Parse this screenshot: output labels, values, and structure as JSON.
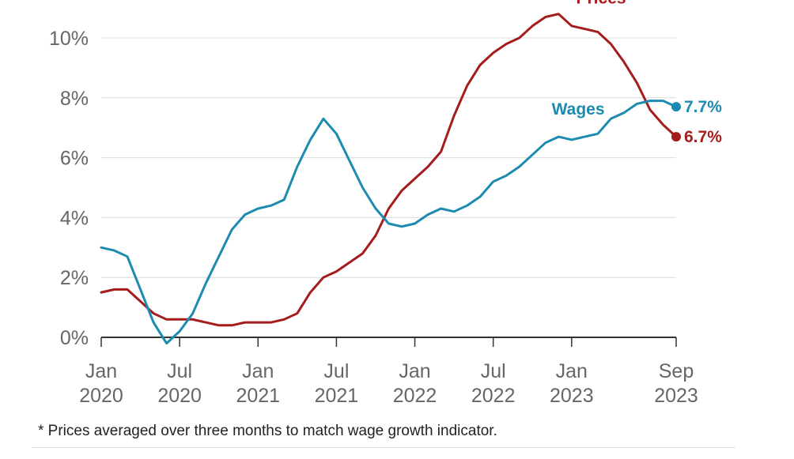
{
  "chart_data": {
    "type": "line",
    "title": "",
    "xlabel": "",
    "ylabel": "",
    "ylim": [
      0,
      10
    ],
    "yticks": [
      0,
      2,
      4,
      6,
      8,
      10
    ],
    "ytick_labels": [
      "0%",
      "2%",
      "4%",
      "6%",
      "8%",
      "10%"
    ],
    "grid": true,
    "xticks": [
      {
        "month": 0,
        "line1": "Jan",
        "line2": "2020"
      },
      {
        "month": 6,
        "line1": "Jul",
        "line2": "2020"
      },
      {
        "month": 12,
        "line1": "Jan",
        "line2": "2021"
      },
      {
        "month": 18,
        "line1": "Jul",
        "line2": "2021"
      },
      {
        "month": 24,
        "line1": "Jan",
        "line2": "2022"
      },
      {
        "month": 30,
        "line1": "Jul",
        "line2": "2022"
      },
      {
        "month": 36,
        "line1": "Jan",
        "line2": "2023"
      },
      {
        "month": 44,
        "line1": "Sep",
        "line2": "2023"
      }
    ],
    "x": [
      "Jan 2020",
      "Feb 2020",
      "Mar 2020",
      "Apr 2020",
      "May 2020",
      "Jun 2020",
      "Jul 2020",
      "Aug 2020",
      "Sep 2020",
      "Oct 2020",
      "Nov 2020",
      "Dec 2020",
      "Jan 2021",
      "Feb 2021",
      "Mar 2021",
      "Apr 2021",
      "May 2021",
      "Jun 2021",
      "Jul 2021",
      "Aug 2021",
      "Sep 2021",
      "Oct 2021",
      "Nov 2021",
      "Dec 2021",
      "Jan 2022",
      "Feb 2022",
      "Mar 2022",
      "Apr 2022",
      "May 2022",
      "Jun 2022",
      "Jul 2022",
      "Aug 2022",
      "Sep 2022",
      "Oct 2022",
      "Nov 2022",
      "Dec 2022",
      "Jan 2023",
      "Feb 2023",
      "Mar 2023",
      "Apr 2023",
      "May 2023",
      "Jun 2023",
      "Jul 2023",
      "Aug 2023",
      "Sep 2023"
    ],
    "series": [
      {
        "name": "Prices*",
        "color": "#a51c1c",
        "end_label": "6.7%",
        "values": [
          1.5,
          1.6,
          1.6,
          1.2,
          0.8,
          0.6,
          0.6,
          0.6,
          0.5,
          0.4,
          0.4,
          0.5,
          0.5,
          0.5,
          0.6,
          0.8,
          1.5,
          2.0,
          2.2,
          2.5,
          2.8,
          3.4,
          4.3,
          4.9,
          5.3,
          5.7,
          6.2,
          7.4,
          8.4,
          9.1,
          9.5,
          9.8,
          10.0,
          10.4,
          10.7,
          10.8,
          10.4,
          10.3,
          10.2,
          9.8,
          9.2,
          8.5,
          7.6,
          7.1,
          6.7
        ]
      },
      {
        "name": "Wages",
        "color": "#1d8bb0",
        "end_label": "7.7%",
        "values": [
          3.0,
          2.9,
          2.7,
          1.6,
          0.5,
          -0.2,
          0.2,
          0.8,
          1.8,
          2.7,
          3.6,
          4.1,
          4.3,
          4.4,
          4.6,
          5.7,
          6.6,
          7.3,
          6.8,
          5.9,
          5.0,
          4.3,
          3.8,
          3.7,
          3.8,
          4.1,
          4.3,
          4.2,
          4.4,
          4.7,
          5.2,
          5.4,
          5.7,
          6.1,
          6.5,
          6.7,
          6.6,
          6.7,
          6.8,
          7.3,
          7.5,
          7.8,
          7.9,
          7.9,
          7.7
        ]
      }
    ]
  },
  "footnote": "* Prices averaged over three months to match wage growth indicator."
}
